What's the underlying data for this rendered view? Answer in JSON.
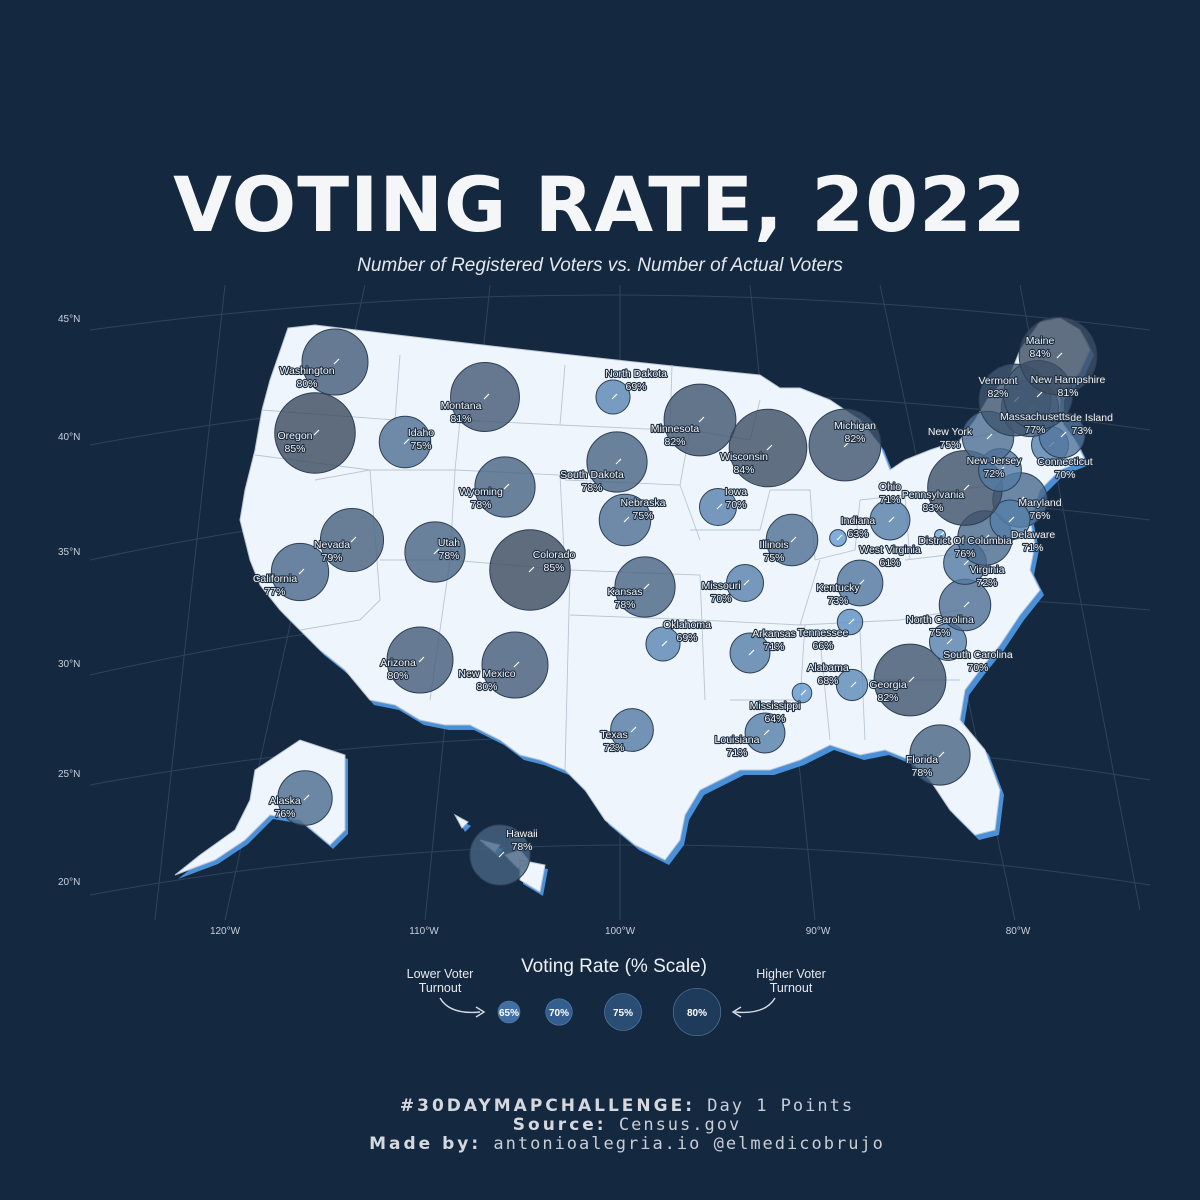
{
  "title": "VOTING RATE, 2022",
  "subtitle": "Number of Registered Voters vs. Number of Actual Voters",
  "lat_labels": [
    "45°N",
    "40°N",
    "35°N",
    "30°N",
    "25°N",
    "20°N"
  ],
  "lon_labels": [
    "120°W",
    "110°W",
    "100°W",
    "90°W",
    "80°W"
  ],
  "states": [
    {
      "name": "Washington",
      "rate": "80%",
      "value": 80
    },
    {
      "name": "Oregon",
      "rate": "85%",
      "value": 85
    },
    {
      "name": "California",
      "rate": "77%",
      "value": 77
    },
    {
      "name": "Nevada",
      "rate": "79%",
      "value": 79
    },
    {
      "name": "Idaho",
      "rate": "75%",
      "value": 75
    },
    {
      "name": "Montana",
      "rate": "81%",
      "value": 81
    },
    {
      "name": "Utah",
      "rate": "78%",
      "value": 78
    },
    {
      "name": "Arizona",
      "rate": "80%",
      "value": 80
    },
    {
      "name": "Wyoming",
      "rate": "78%",
      "value": 78
    },
    {
      "name": "Colorado",
      "rate": "85%",
      "value": 85
    },
    {
      "name": "New Mexico",
      "rate": "80%",
      "value": 80
    },
    {
      "name": "North Dakota",
      "rate": "69%",
      "value": 69
    },
    {
      "name": "South Dakota",
      "rate": "78%",
      "value": 78
    },
    {
      "name": "Nebraska",
      "rate": "75%",
      "value": 75
    },
    {
      "name": "Kansas",
      "rate": "78%",
      "value": 78
    },
    {
      "name": "Oklahoma",
      "rate": "69%",
      "value": 69
    },
    {
      "name": "Texas",
      "rate": "72%",
      "value": 72
    },
    {
      "name": "Minnesota",
      "rate": "82%",
      "value": 82
    },
    {
      "name": "Iowa",
      "rate": "70%",
      "value": 70
    },
    {
      "name": "Missouri",
      "rate": "70%",
      "value": 70
    },
    {
      "name": "Arkansas",
      "rate": "71%",
      "value": 71
    },
    {
      "name": "Louisiana",
      "rate": "71%",
      "value": 71
    },
    {
      "name": "Wisconsin",
      "rate": "84%",
      "value": 84
    },
    {
      "name": "Illinois",
      "rate": "75%",
      "value": 75
    },
    {
      "name": "Michigan",
      "rate": "82%",
      "value": 82
    },
    {
      "name": "Indiana",
      "rate": "63%",
      "value": 63
    },
    {
      "name": "Ohio",
      "rate": "71%",
      "value": 71
    },
    {
      "name": "Kentucky",
      "rate": "73%",
      "value": 73
    },
    {
      "name": "Tennessee",
      "rate": "66%",
      "value": 66
    },
    {
      "name": "Mississippi",
      "rate": "64%",
      "value": 64
    },
    {
      "name": "Alabama",
      "rate": "68%",
      "value": 68
    },
    {
      "name": "Georgia",
      "rate": "82%",
      "value": 82
    },
    {
      "name": "Florida",
      "rate": "78%",
      "value": 78
    },
    {
      "name": "South Carolina",
      "rate": "70%",
      "value": 70
    },
    {
      "name": "North Carolina",
      "rate": "75%",
      "value": 75
    },
    {
      "name": "Virginia",
      "rate": "72%",
      "value": 72
    },
    {
      "name": "West Virginia",
      "rate": "61%",
      "value": 61
    },
    {
      "name": "District Of Columbia",
      "rate": "76%",
      "value": 76
    },
    {
      "name": "Maryland",
      "rate": "76%",
      "value": 76
    },
    {
      "name": "Delaware",
      "rate": "71%",
      "value": 71
    },
    {
      "name": "Pennsylvania",
      "rate": "83%",
      "value": 83
    },
    {
      "name": "New Jersey",
      "rate": "72%",
      "value": 72
    },
    {
      "name": "New York",
      "rate": "75%",
      "value": 75
    },
    {
      "name": "Connecticut",
      "rate": "70%",
      "value": 70
    },
    {
      "name": "Rhode Island",
      "rate": "73%",
      "value": 73
    },
    {
      "name": "Massachusetts",
      "rate": "77%",
      "value": 77
    },
    {
      "name": "Vermont",
      "rate": "82%",
      "value": 82
    },
    {
      "name": "New Hampshire",
      "rate": "81%",
      "value": 81
    },
    {
      "name": "Maine",
      "rate": "84%",
      "value": 84
    },
    {
      "name": "Alaska",
      "rate": "76%",
      "value": 76
    },
    {
      "name": "Hawaii",
      "rate": "78%",
      "value": 78
    }
  ],
  "legend": {
    "title": "Voting Rate (% Scale)",
    "low_note": "Lower Voter Turnout",
    "high_note": "Higher Voter Turnout",
    "items": [
      {
        "label": "65%",
        "value": 65
      },
      {
        "label": "70%",
        "value": 70
      },
      {
        "label": "75%",
        "value": 75
      },
      {
        "label": "80%",
        "value": 80
      }
    ]
  },
  "footer": {
    "line1_bold": "#30DAYMAPCHALLENGE:",
    "line1_text": "Day 1 Points",
    "line2_bold": "Source:",
    "line2_text": "Census.gov",
    "line3_bold": "Made by:",
    "line3_text": "antonioalegria.io @elmedicobrujo"
  },
  "colors": {
    "background": "#142840",
    "land": "#eef5fc",
    "land_shadow": "#4a90d9",
    "low_bubble": "#6aa6e0",
    "high_bubble": "#3a4a5e"
  }
}
